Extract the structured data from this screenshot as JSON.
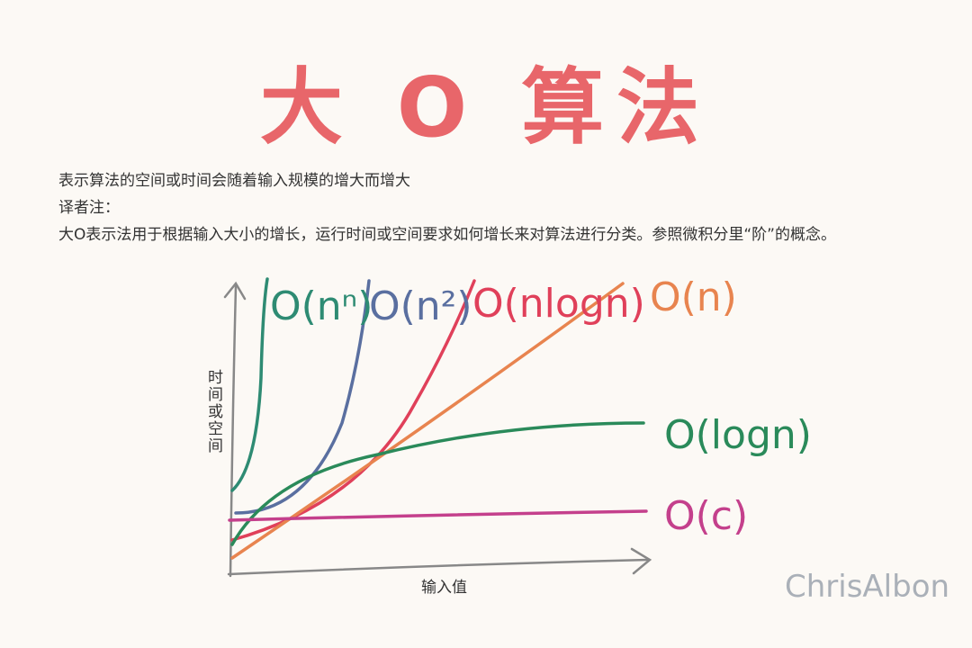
{
  "header": {
    "title": "大 O 算法"
  },
  "description": {
    "lines": [
      "表示算法的空间或时间会随着输入规模的增大而增大",
      "译者注：",
      "大O表示法用于根据输入大小的增长，运行时间或空间要求如何增长来对算法进行分类。参照微积分里“阶”的概念。"
    ]
  },
  "diagram": {
    "y_axis_label": "时间或空间",
    "x_axis_label": "输入值",
    "curves": [
      {
        "label": "O(nⁿ)",
        "color": "#2e8b73"
      },
      {
        "label": "O(n²)",
        "color": "#5a6fa0"
      },
      {
        "label": "O(nlogn)",
        "color": "#e0405a"
      },
      {
        "label": "O(n)",
        "color": "#e8844f"
      },
      {
        "label": "O(logn)",
        "color": "#2a8a5a"
      },
      {
        "label": "O(c)",
        "color": "#c4408c"
      }
    ]
  },
  "signature": "ChrisAlbon"
}
